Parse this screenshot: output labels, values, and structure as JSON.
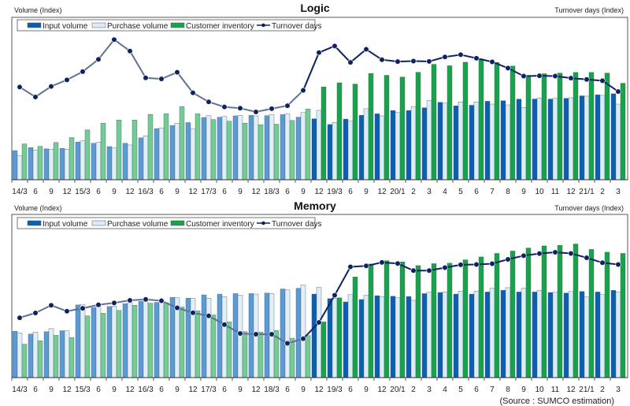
{
  "source": "(Source : SUMCO estimation)",
  "colors": {
    "input_light": "#5b9bd5",
    "input_dark": "#0b5fb0",
    "purchase_light": "#e3eff7",
    "purchase_dark": "#dcecf6",
    "inventory_light": "#72cc94",
    "inventory_dark": "#16a34a",
    "turnover_light": "#5f7196",
    "turnover_dark": "#0d2360",
    "marker": "#0d2360"
  },
  "chart_data": [
    {
      "type": "bar",
      "title": "Logic",
      "ylabel": "Volume (Index)",
      "y2label": "Turnover days (Index)",
      "ylim": [
        0,
        100
      ],
      "legend": "top-left",
      "highlight_from_index": 19,
      "categories": [
        "14/3",
        "6",
        "9",
        "12",
        "15/3",
        "6",
        "9",
        "12",
        "16/3",
        "6",
        "9",
        "12",
        "17/3",
        "6",
        "9",
        "12",
        "18/3",
        "6",
        "9",
        "12",
        "19/3",
        "6",
        "9",
        "12",
        "20/1",
        "2",
        "3",
        "4",
        "5",
        "6",
        "7",
        "8",
        "9",
        "10",
        "11",
        "12",
        "21/1",
        "2",
        "3"
      ],
      "series": [
        {
          "name": "Input volume",
          "kind": "bar",
          "values": [
            18.3,
            20.2,
            19.4,
            19.7,
            23.7,
            22.9,
            20.8,
            22.9,
            26.3,
            32.1,
            34.1,
            35.9,
            39.1,
            39.3,
            40.1,
            40.4,
            40.2,
            40.9,
            39.3,
            38.3,
            34.7,
            38.1,
            40.5,
            41.4,
            43.5,
            43.5,
            45.2,
            48.6,
            46.4,
            46.8,
            49.3,
            49.6,
            50.6,
            50.7,
            50.7,
            51.1,
            52.7,
            53.3,
            54.0
          ]
        },
        {
          "name": "Purchase volume",
          "kind": "bar",
          "values": [
            15.0,
            18.6,
            19.2,
            19.2,
            24.4,
            23.6,
            19.9,
            21.8,
            27.6,
            32.5,
            35.5,
            31.8,
            40.2,
            39.7,
            40.4,
            40.1,
            41.0,
            41.4,
            42.2,
            43.6,
            36.0,
            36.8,
            44.6,
            40.1,
            42.2,
            46.0,
            49.9,
            48.1,
            48.9,
            48.9,
            47.5,
            47.0,
            45.4,
            51.4,
            51.1,
            51.5,
            52.5,
            53.0,
            47.5
          ]
        },
        {
          "name": "Customer inventory",
          "kind": "bar",
          "values": [
            22.5,
            21.0,
            23.4,
            26.5,
            31.3,
            35.5,
            37.5,
            37.5,
            41.0,
            41.5,
            46.0,
            41.4,
            37.8,
            36.8,
            35.5,
            34.6,
            34.9,
            37.2,
            44.4,
            58.3,
            60.9,
            60.1,
            66.7,
            65.6,
            64.5,
            67.5,
            72.5,
            71.6,
            73.8,
            75.9,
            73.7,
            71.4,
            65.4,
            66.6,
            67.0,
            67.4,
            67.4,
            67.0,
            60.6
          ]
        },
        {
          "name": "Turnover days",
          "kind": "line",
          "values": [
            58.2,
            52.0,
            58.6,
            62.7,
            67.9,
            75.6,
            88.0,
            80.8,
            64.0,
            63.3,
            67.5,
            54.6,
            48.9,
            45.7,
            44.9,
            42.6,
            44.6,
            46.5,
            56.1,
            79.8,
            84.0,
            73.7,
            81.9,
            75.4,
            74.2,
            74.5,
            74.3,
            77.1,
            78.5,
            76.3,
            74.0,
            70.1,
            65.1,
            65.3,
            65.1,
            63.8,
            63.0,
            62.2,
            55.4
          ]
        }
      ]
    },
    {
      "type": "bar",
      "title": "Memory",
      "ylabel": "Volume (Index)",
      "y2label": "Turnover days (Index)",
      "ylim": [
        0,
        100
      ],
      "legend": "top-left",
      "highlight_from_index": 19,
      "categories": [
        "14/3",
        "6",
        "9",
        "12",
        "15/3",
        "6",
        "9",
        "12",
        "16/3",
        "6",
        "9",
        "12",
        "17/3",
        "6",
        "9",
        "12",
        "18/3",
        "6",
        "9",
        "12",
        "19/3",
        "6",
        "9",
        "12",
        "20/1",
        "2",
        "3",
        "4",
        "5",
        "6",
        "7",
        "8",
        "9",
        "10",
        "11",
        "12",
        "21/1",
        "2",
        "3"
      ],
      "series": [
        {
          "name": "Input volume",
          "kind": "bar",
          "values": [
            29.0,
            27.2,
            28.7,
            29.3,
            45.4,
            43.8,
            44.4,
            46.2,
            47.6,
            47.0,
            50.1,
            49.6,
            51.7,
            52.2,
            52.5,
            52.5,
            52.8,
            55.4,
            55.8,
            52.2,
            49.4,
            47.3,
            48.8,
            51.2,
            50.9,
            50.7,
            52.5,
            53.2,
            52.2,
            52.2,
            53.5,
            54.6,
            53.5,
            53.5,
            53.2,
            52.8,
            53.8,
            53.5,
            54.5
          ]
        },
        {
          "name": "Purchase volume",
          "kind": "bar",
          "values": [
            28.0,
            28.4,
            30.6,
            29.2,
            45.5,
            44.4,
            44.7,
            46.8,
            48.5,
            47.6,
            49.9,
            49.6,
            49.6,
            50.6,
            51.5,
            52.2,
            52.5,
            54.8,
            57.9,
            56.4,
            49.4,
            51.9,
            51.4,
            50.7,
            49.9,
            48.3,
            53.3,
            53.6,
            54.0,
            54.1,
            55.8,
            56.2,
            55.8,
            54.6,
            53.3,
            53.8,
            50.4,
            51.9,
            53.6
          ]
        },
        {
          "name": "Customer inventory",
          "kind": "bar",
          "values": [
            20.9,
            23.0,
            26.4,
            25.0,
            38.6,
            40.2,
            42.0,
            45.2,
            46.5,
            46.8,
            44.1,
            41.7,
            39.2,
            34.8,
            28.7,
            28.5,
            29.5,
            24.6,
            26.3,
            34.8,
            49.9,
            62.9,
            71.0,
            73.1,
            72.3,
            70.0,
            71.2,
            71.5,
            73.6,
            75.4,
            77.6,
            79.1,
            81.0,
            82.3,
            82.7,
            83.5,
            80.1,
            78.4,
            77.6
          ]
        },
        {
          "name": "Turnover days",
          "kind": "line",
          "values": [
            37.4,
            40.4,
            45.2,
            41.5,
            43.3,
            45.5,
            46.7,
            48.3,
            48.9,
            48.0,
            43.6,
            40.5,
            38.6,
            33.1,
            27.6,
            27.1,
            27.1,
            21.4,
            24.3,
            34.5,
            51.5,
            69.2,
            69.8,
            72.0,
            71.3,
            66.9,
            66.9,
            68.7,
            70.5,
            70.7,
            71.2,
            73.9,
            76.2,
            77.5,
            78.3,
            77.6,
            74.9,
            71.8,
            70.7
          ]
        }
      ]
    }
  ]
}
